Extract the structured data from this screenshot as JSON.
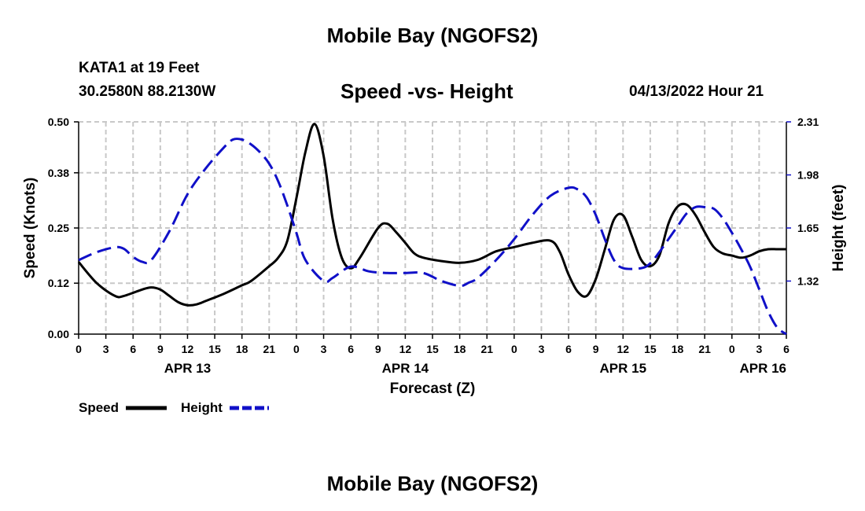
{
  "header": {
    "title": "Mobile Bay (NGOFS2)",
    "station": "KATA1 at 19 Feet",
    "coords": "30.2580N  88.2130W",
    "forecast_time": "04/13/2022 Hour 21"
  },
  "footer": {
    "title": "Mobile Bay (NGOFS2)"
  },
  "chart_data": {
    "type": "line",
    "title": "Speed -vs- Height",
    "xlabel": "Forecast (Z)",
    "ylabel_left": "Speed (Knots)",
    "ylabel_right": "Height (feet)",
    "x_unit": "hours since APR 13 00Z",
    "xlim": [
      0,
      78
    ],
    "ylim_left": [
      0,
      0.5
    ],
    "ylim_right": [
      0.99,
      2.31
    ],
    "yticks_left": [
      0.0,
      0.12,
      0.25,
      0.38,
      0.5
    ],
    "yticks_left_labels": [
      "0.00",
      "0.12",
      "0.25",
      "0.38",
      "0.50"
    ],
    "yticks_right": [
      1.32,
      1.65,
      1.98,
      2.31
    ],
    "yticks_right_labels": [
      "1.32",
      "1.65",
      "1.98",
      "2.31"
    ],
    "xticks": [
      0,
      3,
      6,
      9,
      12,
      15,
      18,
      21,
      24,
      27,
      30,
      33,
      36,
      39,
      42,
      45,
      48,
      51,
      54,
      57,
      60,
      63,
      66,
      69,
      72,
      75,
      78
    ],
    "xtick_labels": [
      "0",
      "3",
      "6",
      "9",
      "12",
      "15",
      "18",
      "21",
      "0",
      "3",
      "6",
      "9",
      "12",
      "15",
      "18",
      "21",
      "0",
      "3",
      "6",
      "9",
      "12",
      "15",
      "18",
      "21",
      "0",
      "3",
      "6"
    ],
    "day_labels": [
      {
        "label": "APR 13",
        "x": 12
      },
      {
        "label": "APR 14",
        "x": 36
      },
      {
        "label": "APR 15",
        "x": 60
      },
      {
        "label": "APR 16",
        "x": 78
      }
    ],
    "grid": true,
    "legend": "bottom-left",
    "series": [
      {
        "name": "Speed",
        "axis": "left",
        "color": "#000000",
        "style": "solid",
        "x": [
          0,
          2,
          4,
          5,
          7,
          8,
          9,
          10,
          11,
          12,
          13,
          14,
          16,
          18,
          19,
          21,
          22,
          23,
          24,
          25,
          26,
          27,
          28,
          29,
          30,
          31,
          33,
          34,
          35,
          36,
          37,
          38,
          40,
          42,
          44,
          46,
          48,
          50,
          52,
          53,
          54,
          55,
          56,
          57,
          58,
          59,
          60,
          61,
          62,
          63,
          64,
          65,
          66,
          67,
          68,
          69,
          70,
          71,
          72,
          73,
          74,
          75,
          76,
          77,
          78
        ],
        "values": [
          0.17,
          0.12,
          0.09,
          0.09,
          0.105,
          0.11,
          0.105,
          0.09,
          0.075,
          0.068,
          0.07,
          0.078,
          0.095,
          0.115,
          0.125,
          0.16,
          0.18,
          0.22,
          0.32,
          0.43,
          0.495,
          0.42,
          0.27,
          0.18,
          0.155,
          0.18,
          0.25,
          0.26,
          0.24,
          0.215,
          0.19,
          0.18,
          0.172,
          0.168,
          0.175,
          0.195,
          0.205,
          0.215,
          0.22,
          0.195,
          0.14,
          0.1,
          0.09,
          0.13,
          0.2,
          0.27,
          0.28,
          0.23,
          0.175,
          0.16,
          0.185,
          0.26,
          0.3,
          0.305,
          0.28,
          0.24,
          0.205,
          0.19,
          0.185,
          0.18,
          0.185,
          0.195,
          0.2,
          0.2,
          0.2
        ]
      },
      {
        "name": "Height",
        "axis": "right",
        "color": "#1010c8",
        "style": "dashed",
        "x": [
          0,
          2,
          4,
          5,
          6,
          7,
          8,
          10,
          12,
          14,
          16,
          17,
          18,
          19,
          20,
          21,
          22,
          23,
          24,
          25,
          27,
          28,
          30,
          32,
          34,
          36,
          38,
          40,
          42,
          43,
          44,
          46,
          48,
          50,
          52,
          54,
          55,
          56,
          57,
          58,
          59,
          60,
          62,
          63,
          64,
          65,
          66,
          67,
          68,
          69,
          70,
          71,
          72,
          73,
          74,
          75,
          76,
          77,
          78
        ],
        "values": [
          1.45,
          1.5,
          1.53,
          1.52,
          1.47,
          1.44,
          1.45,
          1.63,
          1.86,
          2.02,
          2.15,
          2.2,
          2.2,
          2.17,
          2.12,
          2.05,
          1.94,
          1.79,
          1.62,
          1.45,
          1.32,
          1.34,
          1.41,
          1.38,
          1.37,
          1.37,
          1.37,
          1.32,
          1.29,
          1.31,
          1.34,
          1.45,
          1.58,
          1.73,
          1.85,
          1.9,
          1.89,
          1.84,
          1.73,
          1.58,
          1.45,
          1.4,
          1.4,
          1.43,
          1.5,
          1.58,
          1.66,
          1.74,
          1.78,
          1.78,
          1.77,
          1.71,
          1.62,
          1.52,
          1.41,
          1.27,
          1.13,
          1.03,
          0.99
        ]
      }
    ]
  }
}
